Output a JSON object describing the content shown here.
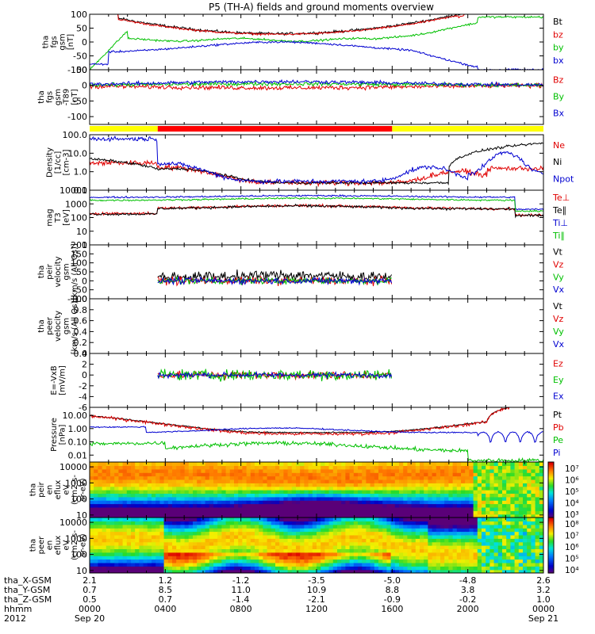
{
  "title": "P5 (TH-A) fields and ground moments overview",
  "chart_data": [
    {
      "type": "line",
      "panel_id": "fgs",
      "ylabel": [
        "tha",
        "fgs",
        "gsm",
        "[nT]"
      ],
      "ylim": [
        -100,
        100
      ],
      "yscale": "linear",
      "ticks": [
        "100",
        "50",
        "0",
        "-50",
        "-100"
      ],
      "tick_values": [
        100,
        50,
        0,
        -50,
        -100
      ],
      "series": [
        {
          "name": "Bt",
          "color": "#000000",
          "kind": "bt",
          "amp": 8,
          "noise": 4
        },
        {
          "name": "bz",
          "color": "#e00000",
          "kind": "bz",
          "amp": 8,
          "noise": 3
        },
        {
          "name": "by",
          "color": "#00c000",
          "kind": "by",
          "amp": 8,
          "noise": 3
        },
        {
          "name": "bx",
          "color": "#0000d0",
          "kind": "bx",
          "amp": 8,
          "noise": 3
        }
      ]
    },
    {
      "type": "line",
      "panel_id": "fgs_dev",
      "ylabel": [
        "tha",
        "fgs",
        "gsm",
        "-T89",
        "[nT]"
      ],
      "ylim": [
        -125,
        50
      ],
      "yscale": "linear",
      "ticks": [
        "50",
        "0",
        "-50",
        "-100"
      ],
      "tick_values": [
        50,
        0,
        -50,
        -100
      ],
      "series": [
        {
          "name": "Bz",
          "color": "#e00000",
          "kind": "dev",
          "base": -8,
          "noise": 6
        },
        {
          "name": "By",
          "color": "#00c000",
          "kind": "dev",
          "base": 5,
          "noise": 5
        },
        {
          "name": "Bx",
          "color": "#0000d0",
          "kind": "dev",
          "base": 12,
          "noise": 5
        }
      ]
    },
    {
      "type": "line",
      "panel_id": "density",
      "ylabel": [
        "Density",
        "[1/cc]",
        "[cm-3]"
      ],
      "ylim": [
        0.1,
        100
      ],
      "yscale": "log",
      "ticks": [
        "100.0",
        "10.0",
        "1.0",
        "0.1"
      ],
      "tick_values": [
        100,
        10,
        1,
        0.1
      ],
      "series": [
        {
          "name": "Ne",
          "color": "#e00000",
          "kind": "ne",
          "noise": 0.12
        },
        {
          "name": "Ni",
          "color": "#000000",
          "kind": "ni",
          "noise": 0.06
        },
        {
          "name": "Npot",
          "color": "#0000d0",
          "kind": "npot",
          "noise": 0.1
        }
      ]
    },
    {
      "type": "line",
      "panel_id": "temperature",
      "ylabel": [
        "mag",
        "T3",
        "[eV]"
      ],
      "ylim": [
        1,
        10000
      ],
      "yscale": "log",
      "ticks": [
        "10000",
        "1000",
        "100",
        "10",
        "1"
      ],
      "tick_values": [
        10000,
        1000,
        100,
        10,
        1
      ],
      "series": [
        {
          "name": "Te⊥",
          "color": "#e00000",
          "kind": "te",
          "noise": 0.08
        },
        {
          "name": "Te∥",
          "color": "#000000",
          "kind": "te2",
          "noise": 0.08
        },
        {
          "name": "Ti⊥",
          "color": "#0000d0",
          "kind": "ti",
          "noise": 0.05
        },
        {
          "name": "Ti∥",
          "color": "#00c000",
          "kind": "ti2",
          "noise": 0.05
        }
      ]
    },
    {
      "type": "line",
      "panel_id": "peir_velocity",
      "ylabel": [
        "tha",
        "peir",
        "velocity",
        "gsm",
        "[km/s (All Qs)]"
      ],
      "ylim": [
        -100,
        200
      ],
      "yscale": "linear",
      "ticks": [
        "200",
        "150",
        "100",
        "50",
        "0",
        "-50",
        "-100"
      ],
      "tick_values": [
        200,
        150,
        100,
        50,
        0,
        -50,
        -100
      ],
      "series": [
        {
          "name": "Vt",
          "color": "#000000",
          "kind": "vt",
          "noise": 25
        },
        {
          "name": "Vz",
          "color": "#e00000",
          "kind": "vc",
          "noise": 18
        },
        {
          "name": "Vy",
          "color": "#00c000",
          "kind": "vc",
          "noise": 15
        },
        {
          "name": "Vx",
          "color": "#0000d0",
          "kind": "vc",
          "noise": 15
        }
      ]
    },
    {
      "type": "line",
      "panel_id": "peer_velocity",
      "ylabel": [
        "tha",
        "peer",
        "velocity",
        "gsm",
        "[km/s (All Qs)]"
      ],
      "ylim": [
        0,
        1
      ],
      "yscale": "linear",
      "ticks": [
        "1.0",
        "0.8",
        "0.6",
        "0.4",
        "0.2",
        "0.0"
      ],
      "tick_values": [
        1.0,
        0.8,
        0.6,
        0.4,
        0.2,
        0.0
      ],
      "series": [
        {
          "name": "Vt",
          "color": "#000000",
          "kind": "none"
        },
        {
          "name": "Vz",
          "color": "#e00000",
          "kind": "none"
        },
        {
          "name": "Vy",
          "color": "#00c000",
          "kind": "none"
        },
        {
          "name": "Vx",
          "color": "#0000d0",
          "kind": "none"
        }
      ]
    },
    {
      "type": "line",
      "panel_id": "efield",
      "ylabel": [
        "E=-VxB",
        "[mV/m]"
      ],
      "ylim": [
        -6,
        4
      ],
      "yscale": "linear",
      "ticks": [
        "4",
        "2",
        "0",
        "-2",
        "-4",
        "-6"
      ],
      "tick_values": [
        4,
        2,
        0,
        -2,
        -4,
        -6
      ],
      "series": [
        {
          "name": "Ez",
          "color": "#e00000",
          "kind": "ec",
          "noise": 0.6
        },
        {
          "name": "Ey",
          "color": "#00c000",
          "kind": "ec",
          "noise": 0.9
        },
        {
          "name": "Ex",
          "color": "#0000d0",
          "kind": "ec",
          "noise": 0.4
        }
      ]
    },
    {
      "type": "line",
      "panel_id": "pressure",
      "ylabel": [
        "Pressure",
        "[nPa]"
      ],
      "ylim": [
        0.003,
        40
      ],
      "yscale": "log",
      "ticks": [
        "10.00",
        "1.00",
        "0.10",
        "0.01"
      ],
      "tick_values": [
        10,
        1,
        0.1,
        0.01
      ],
      "series": [
        {
          "name": "Pt",
          "color": "#000000",
          "kind": "pt",
          "noise": 0.04
        },
        {
          "name": "Pb",
          "color": "#e00000",
          "kind": "pb",
          "noise": 0.1
        },
        {
          "name": "Pe",
          "color": "#00c000",
          "kind": "pe",
          "noise": 0.12
        },
        {
          "name": "Pi",
          "color": "#0000d0",
          "kind": "pi",
          "noise": 0.04
        }
      ]
    },
    {
      "type": "heatmap",
      "panel_id": "peir_spectrogram",
      "ylabel": [
        "tha",
        "peir",
        "en",
        "eflux",
        "eV",
        "(cm2-s-",
        "sr-eV)"
      ],
      "ylim": [
        7,
        20000
      ],
      "yscale": "log",
      "ticks": [
        "10000",
        "1000",
        "100",
        "10"
      ],
      "tick_values": [
        10000,
        1000,
        100,
        10
      ],
      "colorbar_ticks": [
        "10⁷",
        "10⁶",
        "10⁵",
        "10⁴",
        "10³"
      ],
      "colorbar_range": [
        2.5,
        7.3
      ]
    },
    {
      "type": "heatmap",
      "panel_id": "peer_spectrogram",
      "ylabel": [
        "tha",
        "peer",
        "en",
        "eflux",
        "eV",
        "(cm2-s-",
        "sr-eV)"
      ],
      "ylim": [
        7,
        20000
      ],
      "yscale": "log",
      "ticks": [
        "10000",
        "1000",
        "100",
        "10"
      ],
      "tick_values": [
        10000,
        1000,
        100,
        10
      ],
      "colorbar_ticks": [
        "10⁸",
        "10⁷",
        "10⁶",
        "10⁵",
        "10⁴"
      ],
      "colorbar_range": [
        3.6,
        8.3
      ]
    }
  ],
  "xaxis": {
    "row_labels": [
      "tha_X-GSM",
      "tha_Y-GSM",
      "tha_Z-GSM",
      "hhmm",
      "2012"
    ],
    "columns": [
      {
        "x": "2.1",
        "y": "0.7",
        "z": "0.5",
        "hhmm": "0000",
        "date": "Sep 20"
      },
      {
        "x": "1.2",
        "y": "8.5",
        "z": "0.7",
        "hhmm": "0400",
        "date": ""
      },
      {
        "x": "-1.2",
        "y": "11.0",
        "z": "-1.4",
        "hhmm": "0800",
        "date": ""
      },
      {
        "x": "-3.5",
        "y": "10.9",
        "z": "-2.1",
        "hhmm": "1200",
        "date": ""
      },
      {
        "x": "-5.0",
        "y": "8.8",
        "z": "-0.9",
        "hhmm": "1600",
        "date": ""
      },
      {
        "x": "-4.8",
        "y": "3.8",
        "z": "-0.2",
        "hhmm": "2000",
        "date": ""
      },
      {
        "x": "2.6",
        "y": "3.2",
        "z": "1.0",
        "hhmm": "0000",
        "date": "Sep 21"
      }
    ]
  },
  "mode_bar": {
    "colors": [
      "#ffff00",
      "#ff0000",
      "#ffff00"
    ],
    "segments_hours": [
      [
        0,
        3.6
      ],
      [
        3.6,
        16.0
      ],
      [
        16.0,
        24.0
      ]
    ]
  },
  "time_range_hours": [
    0,
    24
  ],
  "colors": {
    "black": "#000000",
    "red": "#e00000",
    "green": "#00c000",
    "blue": "#0000d0"
  }
}
